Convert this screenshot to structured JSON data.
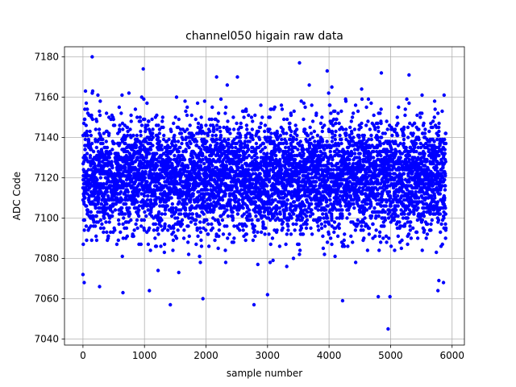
{
  "chart_data": {
    "type": "scatter",
    "title": "channel050 higain raw data",
    "xlabel": "sample number",
    "ylabel": "ADC Code",
    "xlim": [
      -300,
      6200
    ],
    "ylim": [
      7037,
      7185
    ],
    "xticks": [
      0,
      1000,
      2000,
      3000,
      4000,
      5000,
      6000
    ],
    "yticks": [
      7040,
      7060,
      7080,
      7100,
      7120,
      7140,
      7160,
      7180
    ],
    "grid": true,
    "marker_color": "#0000ff",
    "series": [
      {
        "x_range": [
          0,
          5900
        ],
        "count": 5900,
        "center": 7120,
        "std": 14,
        "notable_points": [
          {
            "x": 150,
            "y": 7180
          },
          {
            "x": 980,
            "y": 7174
          },
          {
            "x": 3520,
            "y": 7177
          },
          {
            "x": 4960,
            "y": 7045
          },
          {
            "x": 1420,
            "y": 7057
          },
          {
            "x": 2780,
            "y": 7057
          },
          {
            "x": 1950,
            "y": 7060
          },
          {
            "x": 4220,
            "y": 7059
          },
          {
            "x": 0,
            "y": 7072
          },
          {
            "x": 20,
            "y": 7068
          },
          {
            "x": 270,
            "y": 7066
          },
          {
            "x": 650,
            "y": 7063
          },
          {
            "x": 4800,
            "y": 7061
          },
          {
            "x": 4990,
            "y": 7061
          },
          {
            "x": 3000,
            "y": 7062
          },
          {
            "x": 3970,
            "y": 7173
          },
          {
            "x": 4850,
            "y": 7172
          },
          {
            "x": 5300,
            "y": 7171
          },
          {
            "x": 5870,
            "y": 7161
          },
          {
            "x": 5770,
            "y": 7064
          },
          {
            "x": 5860,
            "y": 7068
          },
          {
            "x": 1080,
            "y": 7064
          }
        ]
      }
    ]
  }
}
